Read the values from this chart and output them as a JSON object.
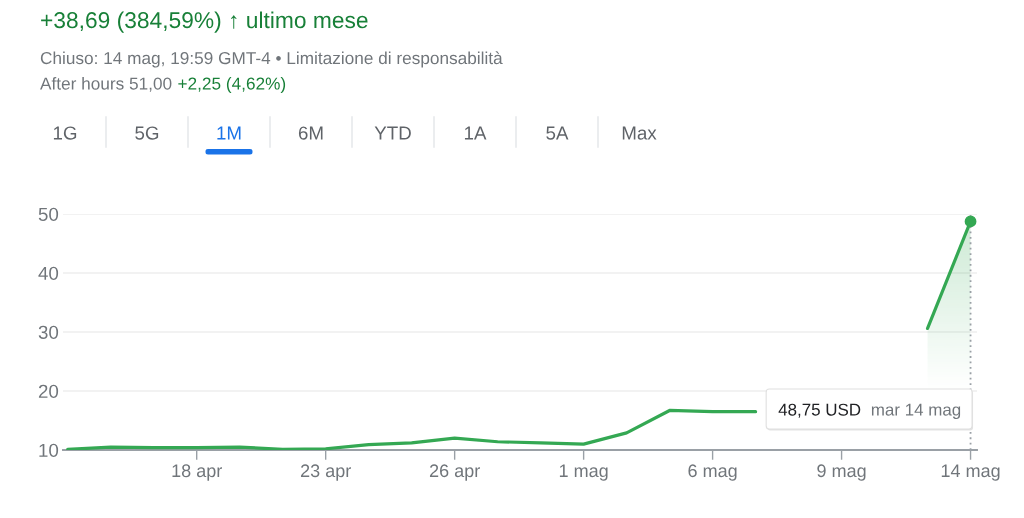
{
  "chart_data": {
    "type": "line",
    "title": "+38,69 (384,59%) ↑ ultimo mese",
    "subtitle": "Chiuso: 14 mag, 19:59 GMT-4 • Limitazione di responsabilità",
    "annotations": [
      "After hours 51,00",
      "+2,25 (4,62%)",
      "1G",
      "5G",
      "1M",
      "6M",
      "YTD",
      "1A",
      "5A",
      "Max",
      "48,75 USD",
      "mar 14 mag"
    ],
    "categories": [
      null,
      null,
      null,
      "18 apr",
      null,
      null,
      "23 apr",
      null,
      null,
      "26 apr",
      null,
      null,
      "1 mag",
      null,
      null,
      "6 mag",
      null,
      null,
      "9 mag",
      null,
      null,
      "14 mag"
    ],
    "series": [
      {
        "color": "#34a853",
        "values": [
          10.1,
          10.5,
          10.4,
          10.4,
          10.5,
          10.1,
          10.2,
          10.9,
          11.2,
          12.0,
          11.4,
          11.2,
          11.0,
          12.9,
          16.7,
          16.5,
          16.5,
          null,
          null,
          null,
          30.6,
          48.75
        ]
      }
    ],
    "ylim": [
      10,
      50
    ],
    "yticks": [
      10,
      20,
      30,
      40,
      50
    ],
    "grid": "y",
    "ref_lines": [
      {
        "axis": "x",
        "value": "14 mag",
        "line_style": "dotted",
        "color": "#9aa0a6"
      }
    ]
  }
}
